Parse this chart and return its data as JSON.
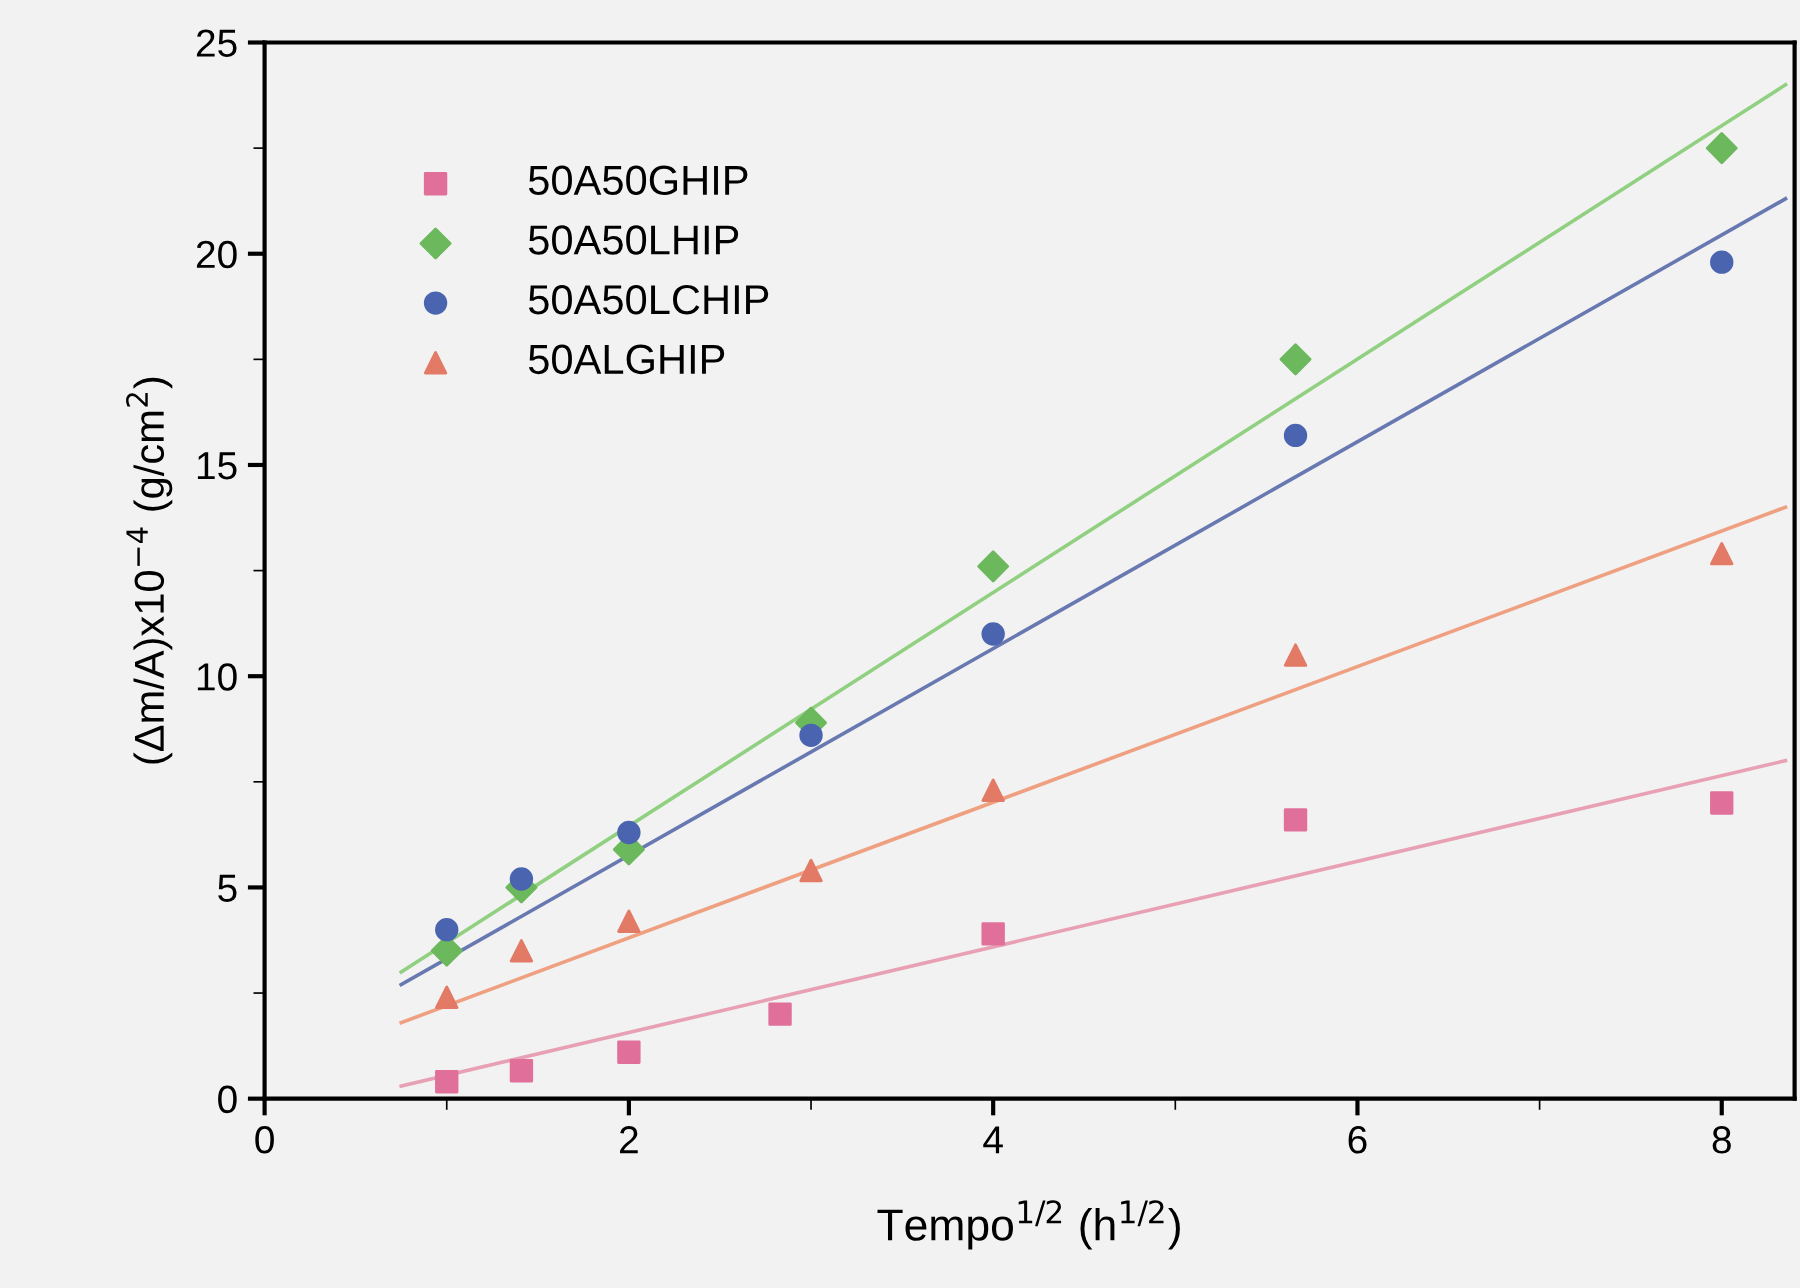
{
  "chart_data": {
    "type": "scatter",
    "xlabel": "Tempo$^{1/2}$ (h$^{1/2}$)",
    "ylabel": "(Δm/A)x10$^{−4}$ (g/cm$^{2}$)",
    "xlim": [
      0,
      8.4
    ],
    "xticks": [
      0,
      2,
      4,
      6,
      8
    ],
    "ylim": [
      0,
      25
    ],
    "yticks": [
      0,
      5,
      10,
      15,
      20,
      25
    ],
    "grid": false,
    "legend": "top left",
    "series": [
      {
        "name": "50A50GHIP",
        "marker": "square",
        "color": "#e0709a",
        "x": [
          1,
          1.41,
          2,
          2.83,
          4,
          5.66,
          8
        ],
        "values": [
          0.4,
          0.66,
          1.1,
          2.0,
          3.9,
          6.6,
          7.0
        ]
      },
      {
        "name": "50A50LHIP",
        "marker": "diamond",
        "color": "#6cb85c",
        "x": [
          1,
          1.41,
          2,
          3,
          4,
          5.66,
          8
        ],
        "values": [
          3.5,
          5.0,
          5.9,
          8.9,
          12.6,
          17.5,
          22.5
        ]
      },
      {
        "name": "50A50LCHIP",
        "marker": "circle",
        "color": "#4a64b0",
        "x": [
          1,
          1.41,
          2,
          3,
          4,
          5.66,
          8
        ],
        "values": [
          4.0,
          5.2,
          6.3,
          8.6,
          11.0,
          15.7,
          19.8
        ]
      },
      {
        "name": "50ALGHIP",
        "marker": "triangle",
        "color": "#e27a66",
        "x": [
          1,
          1.41,
          2,
          3,
          4,
          5.66,
          8
        ],
        "values": [
          2.4,
          3.5,
          4.2,
          5.4,
          7.3,
          10.5,
          12.9
        ]
      },
      {
        "type": "line",
        "color": "#e8a0b4",
        "x": [
          0.75,
          8.35
        ],
        "values": [
          0.3,
          8.0
        ]
      },
      {
        "type": "line",
        "color": "#90d080",
        "x": [
          0.75,
          8.35
        ],
        "values": [
          3.0,
          24.0
        ]
      },
      {
        "type": "line",
        "color": "#6878b0",
        "x": [
          0.75,
          8.35
        ],
        "values": [
          2.7,
          21.3
        ]
      },
      {
        "type": "line",
        "color": "#eea080",
        "x": [
          0.75,
          8.35
        ],
        "values": [
          1.8,
          14.0
        ]
      }
    ]
  }
}
